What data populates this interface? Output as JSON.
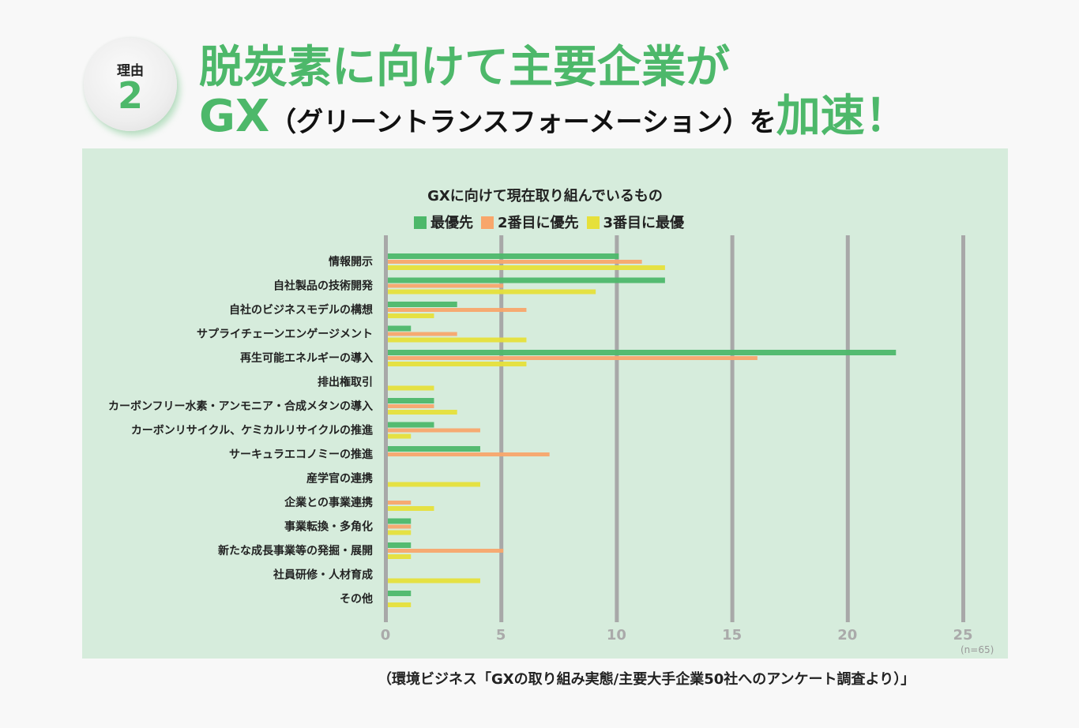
{
  "badge": {
    "label": "理由",
    "number": "2"
  },
  "headline": {
    "line1": "脱炭素に向けて主要企業が",
    "line2_gx": "GX",
    "line2_paren": "（グリーントランスフォーメーション）を",
    "line2_accent": "加速！"
  },
  "source": "（環境ビジネス「GXの取り組み実態/主要大手企業50社へのアンケート調査より）」",
  "chart_data": {
    "type": "bar",
    "orientation": "horizontal",
    "title": "GXに向けて現在取り組んでいるもの",
    "note": "(n=65)",
    "categories": [
      "情報開示",
      "自社製品の技術開発",
      "自社のビジネスモデルの構想",
      "サプライチェーンエンゲージメント",
      "再生可能エネルギーの導入",
      "排出権取引",
      "カーボンフリー水素・アンモニア・合成メタンの導入",
      "カーボンリサイクル、ケミカルリサイクルの推進",
      "サーキュラエコノミーの推進",
      "産学官の連携",
      "企業との事業連携",
      "事業転換・多角化",
      "新たな成長事業等の発掘・展開",
      "社員研修・人材育成",
      "その他"
    ],
    "series": [
      {
        "name": "最優先",
        "color": "#4db86a",
        "values": [
          10,
          12,
          3,
          1,
          22,
          0,
          2,
          2,
          4,
          0,
          0,
          1,
          1,
          0,
          1
        ]
      },
      {
        "name": "2番目に優先",
        "color": "#f8a66b",
        "values": [
          11,
          5,
          6,
          3,
          16,
          0,
          2,
          4,
          7,
          0,
          1,
          1,
          5,
          0,
          0
        ]
      },
      {
        "name": "3番目に最優",
        "color": "#e6e03a",
        "values": [
          12,
          9,
          2,
          6,
          6,
          2,
          3,
          1,
          0,
          4,
          2,
          1,
          1,
          4,
          1
        ]
      }
    ],
    "xlim": [
      0,
      25
    ],
    "xticks": [
      0,
      5,
      10,
      15,
      20,
      25
    ],
    "grid": true,
    "legend_position": "top"
  }
}
